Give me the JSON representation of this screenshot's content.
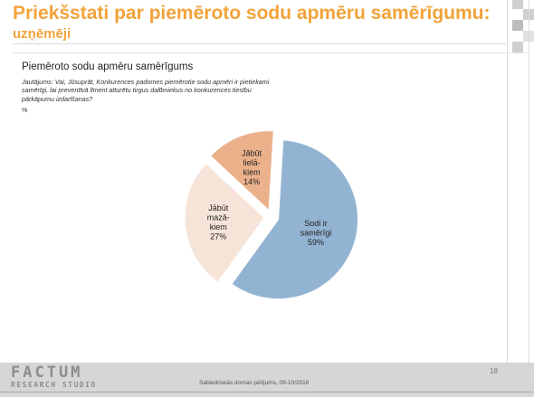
{
  "slide": {
    "title_line1": "Priekšstati par piemēroto sodu apmēru samērīgumu:",
    "title_line2": "uzņēmēji",
    "footer_text": "Sabiedriskās domas pētījums, 09-10/2016",
    "page_number": "18",
    "logo_line1": "FACTUM",
    "logo_line2": "RESEARCH STUDIO"
  },
  "chart_data": {
    "type": "pie",
    "title": "Piemēroto sodu apmēru samērīgums",
    "question": "Jautājums: Vai, Jūsuprāt, Konkurences padomes piemērotie sodu apmēri ir pietiekami samērīgi, lai preventīvā līmenī atturētu tirgus dalībniekus no konkurences tiesību pārkāpumu izdarīšanas?",
    "unit": "%",
    "slices": [
      {
        "label_lines": [
          "Sodi ir",
          "samērīgi"
        ],
        "value": 59,
        "value_label": "59%",
        "color": "#93b3d2"
      },
      {
        "label_lines": [
          "Jābūt",
          "mazā-",
          "kiem"
        ],
        "value": 27,
        "value_label": "27%",
        "color": "#f7e4d8"
      },
      {
        "label_lines": [
          "Jābūt",
          "lielā-",
          "kiem"
        ],
        "value": 14,
        "value_label": "14%",
        "color": "#ebb18b"
      }
    ]
  },
  "colors": {
    "title": "#f2a33a",
    "footer": "#d6d6d6",
    "decor_grey": "#cfcfcf"
  }
}
